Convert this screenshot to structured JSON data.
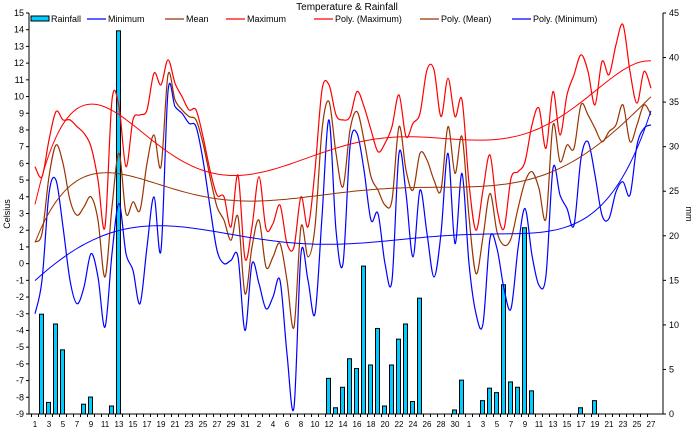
{
  "chart_data": {
    "type": "line",
    "title": "Temperature & Rainfall",
    "ylabel": "Celsius",
    "y2label": "mm",
    "ylim": [
      -9,
      15
    ],
    "y2lim": [
      0,
      45
    ],
    "legend_position": "top",
    "days": [
      1,
      2,
      3,
      4,
      5,
      6,
      7,
      8,
      9,
      10,
      11,
      12,
      13,
      14,
      15,
      16,
      17,
      18,
      19,
      20,
      21,
      22,
      23,
      24,
      25,
      26,
      27,
      28,
      29,
      30,
      31,
      1,
      2,
      3,
      4,
      5,
      6,
      7,
      8,
      9,
      10,
      11,
      12,
      13,
      14,
      15,
      16,
      17,
      18,
      19,
      20,
      21,
      22,
      23,
      24,
      25,
      26,
      27,
      28,
      29,
      30,
      31,
      1,
      2,
      3,
      4,
      5,
      6,
      7,
      8,
      9,
      10,
      11,
      12,
      13,
      14,
      15,
      16,
      17,
      18,
      19,
      20,
      21,
      22,
      23,
      24,
      25,
      26,
      27
    ],
    "series": [
      {
        "name": "Rainfall",
        "type": "bar",
        "axis": "right",
        "color": "#00ccff",
        "values": [
          0,
          11.2,
          1.3,
          10.1,
          7.2,
          0,
          0,
          1.1,
          1.9,
          0,
          0,
          0.9,
          43.0,
          0,
          0,
          0,
          0,
          0,
          0,
          0,
          0,
          0,
          0,
          0,
          0,
          0,
          0,
          0,
          0,
          0,
          0,
          0,
          0,
          0,
          0,
          0,
          0,
          0,
          0,
          0,
          0,
          0,
          4.0,
          0.7,
          3.0,
          6.2,
          5.1,
          16.6,
          5.5,
          9.6,
          0.9,
          5.5,
          8.4,
          10.1,
          1.4,
          13.0,
          0,
          0,
          0,
          0,
          0.45,
          3.8,
          0,
          0,
          1.5,
          2.9,
          2.4,
          14.5,
          3.6,
          3.0,
          20.9,
          2.6,
          0,
          0,
          0,
          0,
          0,
          0,
          0.7,
          0,
          1.5,
          0,
          0,
          0,
          0,
          0,
          0,
          0,
          0
        ]
      },
      {
        "name": "Minimum",
        "type": "line",
        "color": "#0000ff",
        "values": [
          -3.0,
          -1.0,
          4.2,
          5.0,
          2.2,
          -1.0,
          -2.4,
          -1.4,
          0.6,
          -0.8,
          -3.8,
          0.6,
          3.6,
          0.6,
          -0.4,
          -2.4,
          1.0,
          4.0,
          0.8,
          10.3,
          9.4,
          9.0,
          8.4,
          8.2,
          6.2,
          3.4,
          0.8,
          0.0,
          0.2,
          0.4,
          -4.0,
          0.0,
          -1.2,
          -2.7,
          -2.0,
          -1.0,
          -5.4,
          -8.6,
          0.6,
          -1.0,
          -3.0,
          2.8,
          8.6,
          2.0,
          0.0,
          7.0,
          7.8,
          5.6,
          2.6,
          3.0,
          0.0,
          -1.0,
          6.6,
          4.2,
          0.4,
          4.4,
          1.8,
          -0.8,
          1.8,
          6.6,
          1.2,
          5.4,
          0.0,
          -3.0,
          -3.6,
          1.5,
          0.9,
          -1.5,
          -2.7,
          0.9,
          3.3,
          0.5,
          -1.3,
          -0.7,
          5.7,
          4.1,
          3.3,
          2.3,
          6.3,
          7.3,
          5.3,
          2.9,
          2.7,
          4.3,
          4.9,
          4.1,
          7.1,
          8.1,
          8.3
        ]
      },
      {
        "name": "Mean",
        "type": "line",
        "color": "#993300",
        "values": [
          1.3,
          1.8,
          5.2,
          7.1,
          6.0,
          3.8,
          2.9,
          3.4,
          4.0,
          2.6,
          -0.8,
          3.4,
          6.6,
          3.0,
          3.7,
          3.2,
          6.0,
          7.7,
          5.8,
          11.3,
          9.8,
          9.2,
          8.8,
          8.6,
          7.2,
          5.2,
          3.4,
          2.6,
          1.4,
          2.8,
          -1.8,
          1.0,
          2.6,
          -0.2,
          0.4,
          1.2,
          -1.0,
          -3.8,
          2.2,
          0.4,
          2.2,
          8.0,
          9.7,
          6.6,
          4.6,
          8.0,
          9.1,
          7.4,
          5.2,
          4.4,
          3.5,
          3.8,
          8.2,
          5.6,
          4.4,
          6.6,
          6.2,
          5.0,
          4.4,
          8.2,
          5.4,
          7.6,
          2.8,
          -0.6,
          1.6,
          4.2,
          1.9,
          1.1,
          1.5,
          3.3,
          4.9,
          5.5,
          4.5,
          2.7,
          8.3,
          6.1,
          7.1,
          6.9,
          9.5,
          8.9,
          8.1,
          7.3,
          7.9,
          8.3,
          9.5,
          7.3,
          8.3,
          9.5,
          8.9
        ]
      },
      {
        "name": "Maximum",
        "type": "line",
        "color": "#ff0000",
        "values": [
          5.8,
          5.2,
          7.4,
          9.1,
          8.6,
          8.6,
          8.2,
          7.8,
          7.0,
          5.0,
          2.2,
          9.8,
          9.4,
          5.8,
          8.6,
          8.9,
          9.2,
          11.4,
          10.7,
          12.2,
          10.8,
          10.0,
          9.2,
          9.2,
          7.6,
          5.6,
          4.1,
          4.0,
          2.2,
          5.3,
          0.3,
          2.2,
          5.2,
          2.1,
          2.4,
          3.5,
          1.2,
          1.0,
          4.0,
          2.2,
          5.6,
          10.4,
          10.7,
          8.9,
          8.6,
          8.8,
          10.3,
          9.4,
          8.0,
          6.7,
          7.2,
          8.2,
          10.1,
          7.6,
          8.4,
          9.0,
          11.6,
          11.6,
          8.8,
          11.1,
          8.8,
          9.8,
          4.8,
          2.0,
          4.4,
          6.5,
          3.3,
          2.1,
          5.1,
          5.5,
          6.1,
          8.3,
          9.3,
          6.9,
          10.3,
          7.7,
          10.1,
          11.3,
          12.5,
          11.5,
          9.5,
          12.1,
          11.3,
          13.1,
          14.3,
          11.5,
          9.6,
          11.5,
          10.5
        ]
      },
      {
        "name": "Poly. (Maximum)",
        "type": "trendline",
        "of": "Maximum",
        "order": 6,
        "color": "#ff0000"
      },
      {
        "name": "Poly. (Mean)",
        "type": "trendline",
        "of": "Mean",
        "order": 6,
        "color": "#993300"
      },
      {
        "name": "Poly. (Minimum)",
        "type": "trendline",
        "of": "Minimum",
        "order": 6,
        "color": "#0000ff"
      }
    ]
  }
}
